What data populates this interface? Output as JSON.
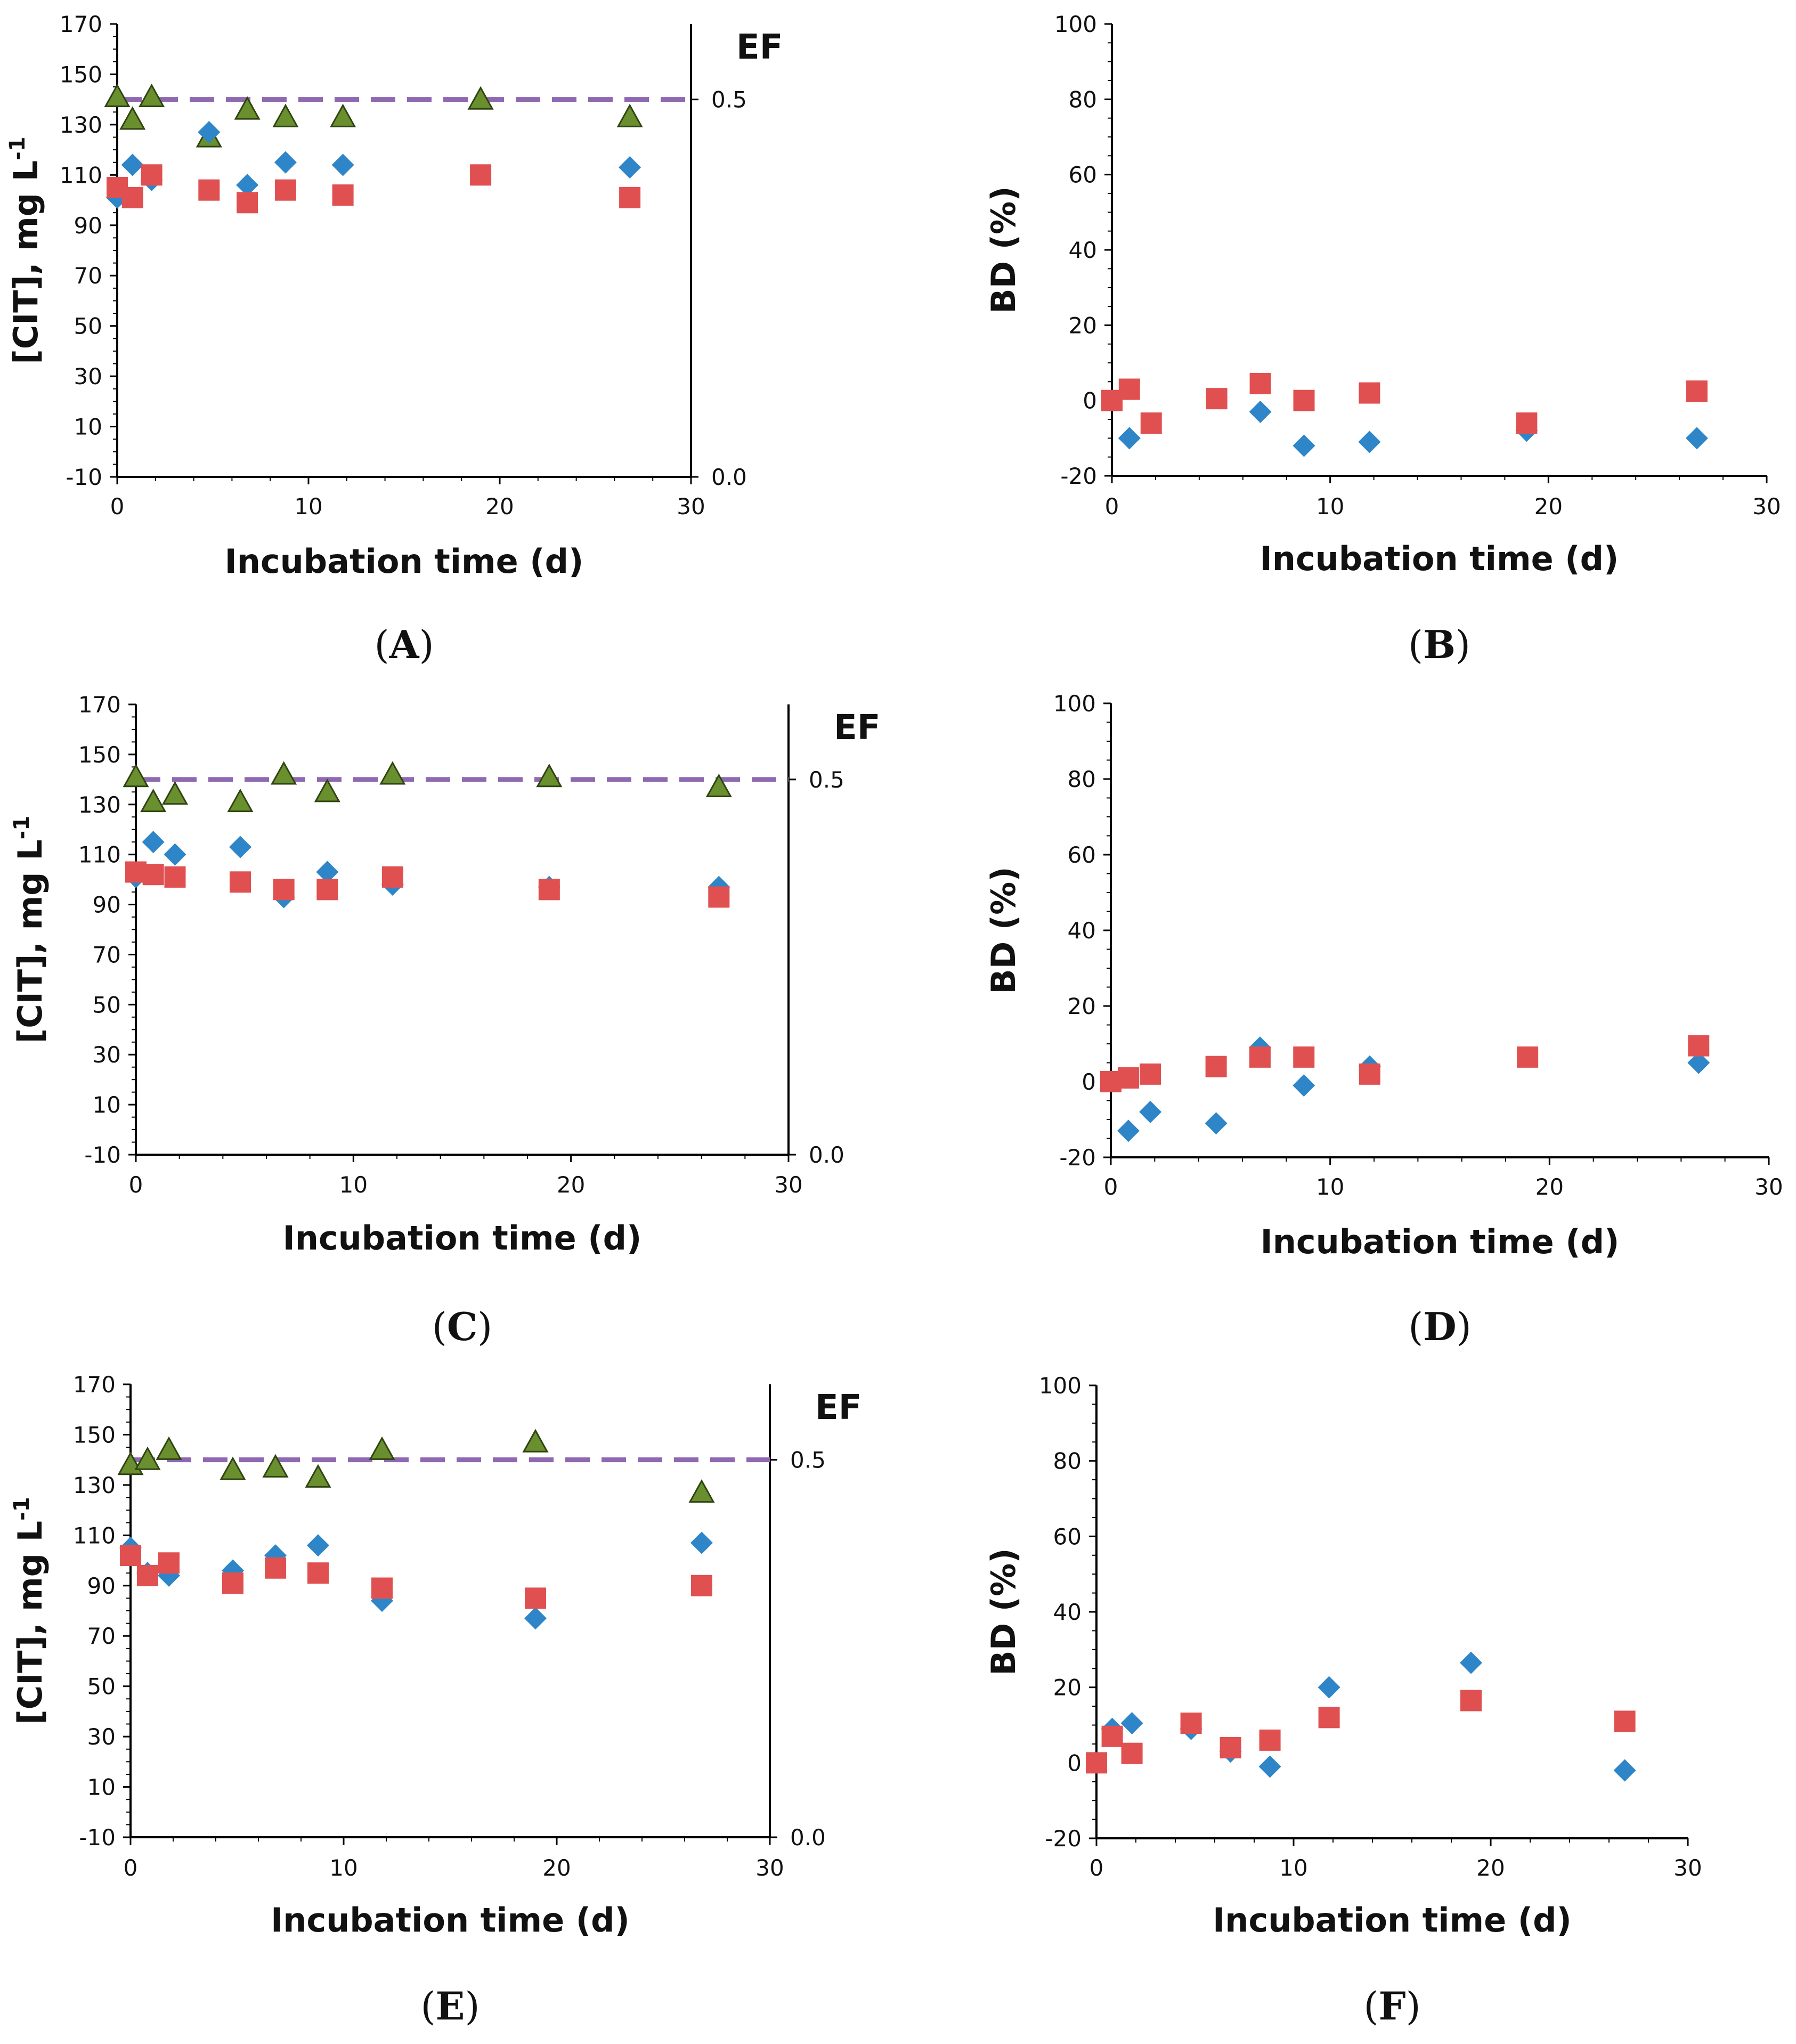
{
  "colors": {
    "diamond": "#2e86c8",
    "square": "#e05050",
    "triangle": "#6a8f2e",
    "triangle_edge": "#2f4412",
    "ef_line": "#8e68b0",
    "axis": "#000000"
  },
  "chart_data": [
    {
      "id": "A",
      "type": "scatter",
      "panel_label": "A",
      "xlabel": "Incubation time (d)",
      "ylabel": "[CIT], mg L",
      "ylabel_sup": "-1",
      "xlim": [
        0,
        30
      ],
      "ylim": [
        -10,
        170
      ],
      "xticks": [
        "0",
        "10",
        "20",
        "30"
      ],
      "yticks": [
        "-10",
        "10",
        "30",
        "50",
        "70",
        "90",
        "110",
        "130",
        "150",
        "170"
      ],
      "secondary_axis": {
        "label": "EF",
        "ylim": [
          0.0,
          0.6
        ],
        "ticks": [
          "0.0",
          "0.5"
        ],
        "tick_values": [
          0.0,
          0.5
        ],
        "threshold": 0.5
      },
      "series": [
        {
          "name": "diamond",
          "marker": "diamond",
          "x": [
            0,
            0.8,
            1.8,
            4.8,
            6.8,
            8.8,
            11.8,
            26.8
          ],
          "y": [
            101,
            114,
            108,
            127,
            106,
            115,
            114,
            113
          ]
        },
        {
          "name": "square",
          "marker": "square",
          "x": [
            0,
            0.8,
            1.8,
            4.8,
            6.8,
            8.8,
            11.8,
            19,
            26.8
          ],
          "y": [
            105,
            101,
            110,
            104,
            99,
            104,
            102,
            110,
            101
          ]
        },
        {
          "name": "triangle",
          "marker": "triangle",
          "x": [
            0,
            0.8,
            1.8,
            4.8,
            6.8,
            8.8,
            11.8,
            19,
            26.8
          ],
          "y": [
            141,
            132,
            141,
            125,
            136,
            133,
            133,
            140,
            133
          ]
        }
      ]
    },
    {
      "id": "B",
      "type": "scatter",
      "panel_label": "B",
      "xlabel": "Incubation time (d)",
      "ylabel": "BD (%)",
      "xlim": [
        0,
        30
      ],
      "ylim": [
        -20,
        100
      ],
      "xticks": [
        "0",
        "10",
        "20",
        "30"
      ],
      "yticks": [
        "-20",
        "0",
        "20",
        "40",
        "60",
        "80",
        "100"
      ],
      "series": [
        {
          "name": "diamond",
          "marker": "diamond",
          "x": [
            0.8,
            6.8,
            8.8,
            11.8,
            19,
            26.8
          ],
          "y": [
            -10,
            -3,
            -12,
            -11,
            -8,
            -10
          ]
        },
        {
          "name": "square",
          "marker": "square",
          "x": [
            0,
            0.8,
            1.8,
            4.8,
            6.8,
            8.8,
            11.8,
            19,
            26.8
          ],
          "y": [
            0,
            3,
            -6,
            0.5,
            4.5,
            0,
            2,
            -6,
            2.5
          ]
        }
      ]
    },
    {
      "id": "C",
      "type": "scatter",
      "panel_label": "C",
      "xlabel": "Incubation time (d)",
      "ylabel": "[CIT], mg L",
      "ylabel_sup": "-1",
      "xlim": [
        0,
        30
      ],
      "ylim": [
        -10,
        170
      ],
      "xticks": [
        "0",
        "10",
        "20",
        "30"
      ],
      "yticks": [
        "-10",
        "10",
        "30",
        "50",
        "70",
        "90",
        "110",
        "130",
        "150",
        "170"
      ],
      "secondary_axis": {
        "label": "EF",
        "ylim": [
          0.0,
          0.6
        ],
        "ticks": [
          "0.0",
          "0.5"
        ],
        "tick_values": [
          0.0,
          0.5
        ],
        "threshold": 0.5
      },
      "series": [
        {
          "name": "diamond",
          "marker": "diamond",
          "x": [
            0,
            0.8,
            1.8,
            4.8,
            6.8,
            8.8,
            11.8,
            19,
            26.8
          ],
          "y": [
            101,
            115,
            110,
            113,
            93,
            103,
            98,
            97,
            97
          ]
        },
        {
          "name": "square",
          "marker": "square",
          "x": [
            0,
            0.8,
            1.8,
            4.8,
            6.8,
            8.8,
            11.8,
            19,
            26.8
          ],
          "y": [
            103,
            102,
            101,
            99,
            96,
            96,
            101,
            96,
            93
          ]
        },
        {
          "name": "triangle",
          "marker": "triangle",
          "x": [
            0,
            0.8,
            1.8,
            4.8,
            6.8,
            8.8,
            11.8,
            19,
            26.8
          ],
          "y": [
            141,
            131,
            134,
            131,
            142,
            135,
            142,
            141,
            137
          ]
        }
      ]
    },
    {
      "id": "D",
      "type": "scatter",
      "panel_label": "D",
      "xlabel": "Incubation time (d)",
      "ylabel": "BD (%)",
      "xlim": [
        0,
        30
      ],
      "ylim": [
        -20,
        100
      ],
      "xticks": [
        "0",
        "10",
        "20",
        "30"
      ],
      "yticks": [
        "-20",
        "0",
        "20",
        "40",
        "60",
        "80",
        "100"
      ],
      "series": [
        {
          "name": "diamond",
          "marker": "diamond",
          "x": [
            0.8,
            1.8,
            4.8,
            6.8,
            8.8,
            11.8,
            26.8
          ],
          "y": [
            -13,
            -8,
            -11,
            9,
            -1,
            4,
            5
          ]
        },
        {
          "name": "square",
          "marker": "square",
          "x": [
            0,
            0.8,
            1.8,
            4.8,
            6.8,
            8.8,
            11.8,
            19,
            26.8
          ],
          "y": [
            0,
            1,
            2,
            4,
            6.5,
            6.5,
            2,
            6.5,
            9.5
          ]
        }
      ]
    },
    {
      "id": "E",
      "type": "scatter",
      "panel_label": "E",
      "xlabel": "Incubation time (d)",
      "ylabel": "[CIT], mg L",
      "ylabel_sup": "-1",
      "xlim": [
        0,
        30
      ],
      "ylim": [
        -10,
        170
      ],
      "xticks": [
        "0",
        "10",
        "20",
        "30"
      ],
      "yticks": [
        "-10",
        "10",
        "30",
        "50",
        "70",
        "90",
        "110",
        "130",
        "150",
        "170"
      ],
      "secondary_axis": {
        "label": "EF",
        "ylim": [
          0.0,
          0.6
        ],
        "ticks": [
          "0.0",
          "0.5"
        ],
        "tick_values": [
          0.0,
          0.5
        ],
        "threshold": 0.5
      },
      "series": [
        {
          "name": "diamond",
          "marker": "diamond",
          "x": [
            0,
            0.8,
            1.8,
            4.8,
            6.8,
            8.8,
            11.8,
            19,
            26.8
          ],
          "y": [
            105,
            95,
            94,
            96,
            102,
            106,
            84,
            77,
            107
          ]
        },
        {
          "name": "square",
          "marker": "square",
          "x": [
            0,
            0.8,
            1.8,
            4.8,
            6.8,
            8.8,
            11.8,
            19,
            26.8
          ],
          "y": [
            102,
            94,
            99,
            91,
            97,
            95,
            89,
            85,
            90
          ]
        },
        {
          "name": "triangle",
          "marker": "triangle",
          "x": [
            0,
            0.8,
            1.8,
            4.8,
            6.8,
            8.8,
            11.8,
            19,
            26.8
          ],
          "y": [
            138,
            140,
            144,
            136,
            137,
            133,
            144,
            147,
            127
          ]
        }
      ]
    },
    {
      "id": "F",
      "type": "scatter",
      "panel_label": "F",
      "xlabel": "Incubation time (d)",
      "ylabel": "BD (%)",
      "xlim": [
        0,
        30
      ],
      "ylim": [
        -20,
        100
      ],
      "xticks": [
        "0",
        "10",
        "20",
        "30"
      ],
      "yticks": [
        "-20",
        "0",
        "20",
        "40",
        "60",
        "80",
        "100"
      ],
      "series": [
        {
          "name": "diamond",
          "marker": "diamond",
          "x": [
            0.8,
            1.8,
            4.8,
            6.8,
            8.8,
            11.8,
            19,
            26.8
          ],
          "y": [
            9,
            10.5,
            9,
            3,
            -1,
            20,
            26.5,
            -2
          ]
        },
        {
          "name": "square",
          "marker": "square",
          "x": [
            0,
            0.8,
            1.8,
            4.8,
            6.8,
            8.8,
            11.8,
            19,
            26.8
          ],
          "y": [
            0,
            7,
            2.5,
            10.5,
            4,
            6,
            12,
            16.5,
            11
          ]
        }
      ]
    }
  ]
}
